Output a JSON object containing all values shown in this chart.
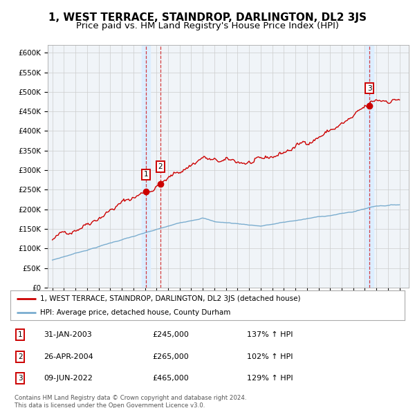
{
  "title": "1, WEST TERRACE, STAINDROP, DARLINGTON, DL2 3JS",
  "subtitle": "Price paid vs. HM Land Registry's House Price Index (HPI)",
  "title_fontsize": 11,
  "subtitle_fontsize": 9.5,
  "ylim": [
    0,
    620000
  ],
  "yticks": [
    0,
    50000,
    100000,
    150000,
    200000,
    250000,
    300000,
    350000,
    400000,
    450000,
    500000,
    550000,
    600000
  ],
  "ytick_labels": [
    "£0",
    "£50K",
    "£100K",
    "£150K",
    "£200K",
    "£250K",
    "£300K",
    "£350K",
    "£400K",
    "£450K",
    "£500K",
    "£550K",
    "£600K"
  ],
  "legend_line1": "1, WEST TERRACE, STAINDROP, DARLINGTON, DL2 3JS (detached house)",
  "legend_line2": "HPI: Average price, detached house, County Durham",
  "sale1_date": "31-JAN-2003",
  "sale1_price": 245000,
  "sale1_year": 2003.08,
  "sale1_pct": "137%",
  "sale2_date": "26-APR-2004",
  "sale2_price": 265000,
  "sale2_year": 2004.33,
  "sale2_pct": "102%",
  "sale3_date": "09-JUN-2022",
  "sale3_price": 465000,
  "sale3_year": 2022.44,
  "sale3_pct": "129%",
  "footnote": "Contains HM Land Registry data © Crown copyright and database right 2024.\nThis data is licensed under the Open Government Licence v3.0.",
  "red_color": "#cc0000",
  "blue_color": "#7aadcf",
  "grid_color": "#cccccc",
  "shaded_color": "#ddeeff"
}
